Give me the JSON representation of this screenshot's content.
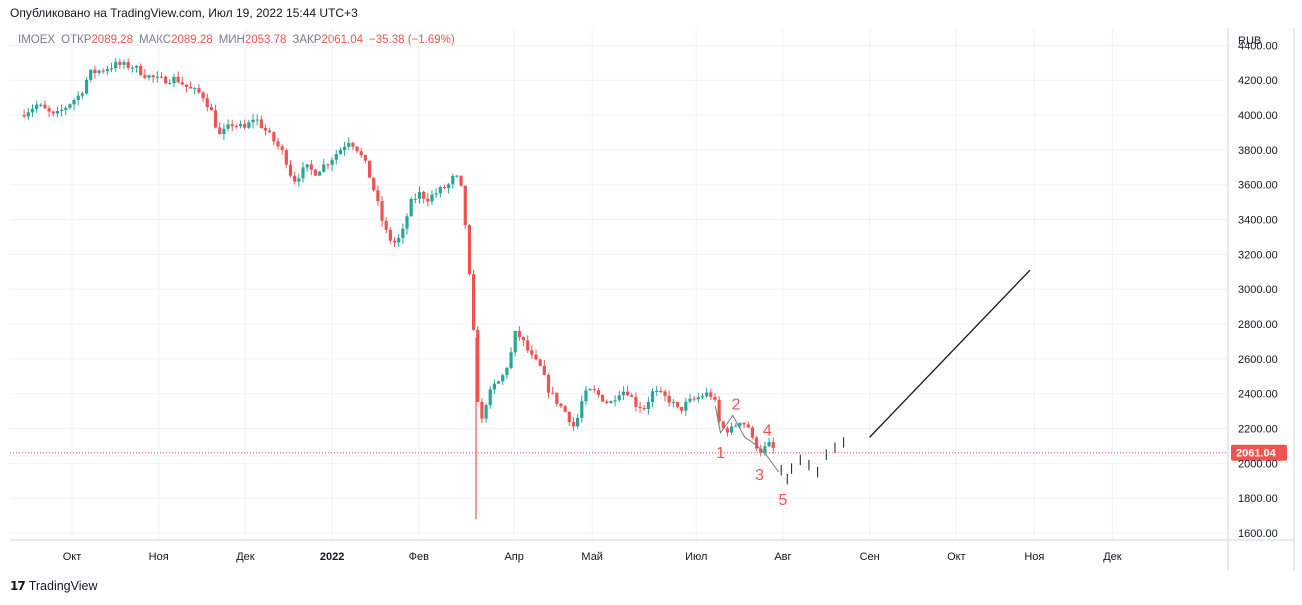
{
  "header": {
    "published": "Опубликовано на TradingView.com, Июл 19, 2022 15:44 UTC+3"
  },
  "legend": {
    "symbol": "IMOEX",
    "open_label": "ОТКР",
    "open": "2089.28",
    "high_label": "МАКС",
    "high": "2089.28",
    "low_label": "МИН",
    "low": "2053.78",
    "close_label": "ЗАКР",
    "close": "2061.04",
    "change": "−35.38 (−1.69%)"
  },
  "footer": {
    "brand": "TradingView",
    "logo": "tradingview-logo-icon"
  },
  "colors": {
    "up": "#26a69a",
    "down": "#ef5350",
    "grid": "#f0f3fa",
    "axis": "#d1d4dc",
    "label": "#ef5350",
    "projection": "#131722"
  },
  "chart_data": {
    "type": "candlestick",
    "currency": "RUB",
    "last_price": 2061.04,
    "last_price_label": "2061.04",
    "ylim": [
      1560,
      4500
    ],
    "y_ticks": [
      "4400.00",
      "4200.00",
      "4000.00",
      "3800.00",
      "3600.00",
      "3400.00",
      "3200.00",
      "3000.00",
      "2800.00",
      "2600.00",
      "2400.00",
      "2200.00",
      "2000.00",
      "1800.00",
      "1600.00"
    ],
    "x_axis_months": [
      {
        "label": "Окт",
        "t": 0.0
      },
      {
        "label": "Ноя",
        "t": 1.0
      },
      {
        "label": "Дек",
        "t": 2.0
      },
      {
        "label": "2022",
        "t": 3.0,
        "bold": true
      },
      {
        "label": "Фев",
        "t": 4.0
      },
      {
        "label": "Апр",
        "t": 5.1
      },
      {
        "label": "Май",
        "t": 6.0
      },
      {
        "label": "Июл",
        "t": 7.2
      },
      {
        "label": "Авг",
        "t": 8.2
      },
      {
        "label": "Сен",
        "t": 9.2
      },
      {
        "label": "Окт",
        "t": 10.2
      },
      {
        "label": "Ноя",
        "t": 11.1
      },
      {
        "label": "Дек",
        "t": 12.0
      }
    ],
    "price_path": [
      [
        -0.6,
        4000
      ],
      [
        -0.4,
        4060
      ],
      [
        -0.2,
        3990
      ],
      [
        0.0,
        4080
      ],
      [
        0.1,
        4120
      ],
      [
        0.2,
        4240
      ],
      [
        0.35,
        4260
      ],
      [
        0.5,
        4290
      ],
      [
        0.7,
        4280
      ],
      [
        0.85,
        4230
      ],
      [
        1.0,
        4200
      ],
      [
        1.2,
        4210
      ],
      [
        1.35,
        4150
      ],
      [
        1.5,
        4120
      ],
      [
        1.6,
        4030
      ],
      [
        1.7,
        3880
      ],
      [
        1.85,
        3950
      ],
      [
        2.0,
        3920
      ],
      [
        2.1,
        3990
      ],
      [
        2.3,
        3870
      ],
      [
        2.45,
        3770
      ],
      [
        2.55,
        3620
      ],
      [
        2.7,
        3700
      ],
      [
        2.8,
        3670
      ],
      [
        2.95,
        3730
      ],
      [
        3.05,
        3780
      ],
      [
        3.2,
        3860
      ],
      [
        3.3,
        3800
      ],
      [
        3.4,
        3700
      ],
      [
        3.5,
        3540
      ],
      [
        3.6,
        3350
      ],
      [
        3.7,
        3260
      ],
      [
        3.8,
        3300
      ],
      [
        3.9,
        3490
      ],
      [
        4.0,
        3550
      ],
      [
        4.1,
        3520
      ],
      [
        4.25,
        3570
      ],
      [
        4.35,
        3600
      ],
      [
        4.42,
        3660
      ],
      [
        4.5,
        3560
      ],
      [
        4.55,
        3300
      ],
      [
        4.6,
        2960
      ],
      [
        4.66,
        2560
      ],
      [
        4.7,
        2180
      ],
      [
        4.78,
        2360
      ],
      [
        4.86,
        2440
      ],
      [
        4.95,
        2480
      ],
      [
        5.05,
        2600
      ],
      [
        5.12,
        2760
      ],
      [
        5.2,
        2700
      ],
      [
        5.3,
        2610
      ],
      [
        5.4,
        2550
      ],
      [
        5.5,
        2420
      ],
      [
        5.6,
        2350
      ],
      [
        5.7,
        2290
      ],
      [
        5.8,
        2200
      ],
      [
        5.9,
        2390
      ],
      [
        6.0,
        2420
      ],
      [
        6.1,
        2380
      ],
      [
        6.2,
        2340
      ],
      [
        6.3,
        2410
      ],
      [
        6.4,
        2420
      ],
      [
        6.5,
        2340
      ],
      [
        6.6,
        2320
      ],
      [
        6.7,
        2410
      ],
      [
        6.8,
        2390
      ],
      [
        6.9,
        2360
      ],
      [
        7.0,
        2300
      ],
      [
        7.1,
        2350
      ],
      [
        7.2,
        2370
      ],
      [
        7.3,
        2400
      ],
      [
        7.4,
        2390
      ],
      [
        7.45,
        2250
      ],
      [
        7.5,
        2200
      ],
      [
        7.6,
        2190
      ],
      [
        7.7,
        2250
      ],
      [
        7.8,
        2210
      ],
      [
        7.85,
        2130
      ],
      [
        7.95,
        2070
      ],
      [
        8.05,
        2110
      ],
      [
        8.12,
        2061
      ]
    ],
    "projection": [
      [
        8.18,
        1960
      ],
      [
        8.25,
        1910
      ],
      [
        8.3,
        1970
      ],
      [
        8.4,
        2020
      ],
      [
        8.5,
        1990
      ],
      [
        8.6,
        1950
      ],
      [
        8.7,
        2050
      ],
      [
        8.8,
        2090
      ],
      [
        8.9,
        2120
      ]
    ],
    "trend_line": {
      "from": [
        9.2,
        2150
      ],
      "to": [
        11.05,
        3110
      ]
    },
    "wave_path": [
      [
        7.42,
        2330
      ],
      [
        7.48,
        2175
      ],
      [
        7.62,
        2275
      ],
      [
        7.76,
        2150
      ],
      [
        7.88,
        2110
      ],
      [
        8.0,
        2055
      ],
      [
        8.15,
        1950
      ]
    ],
    "wave_labels": [
      {
        "text": "1",
        "t": 7.48,
        "p": 2030
      },
      {
        "text": "2",
        "t": 7.66,
        "p": 2310
      },
      {
        "text": "3",
        "t": 7.93,
        "p": 1905
      },
      {
        "text": "4",
        "t": 8.02,
        "p": 2160
      },
      {
        "text": "5",
        "t": 8.2,
        "p": 1760
      }
    ]
  }
}
